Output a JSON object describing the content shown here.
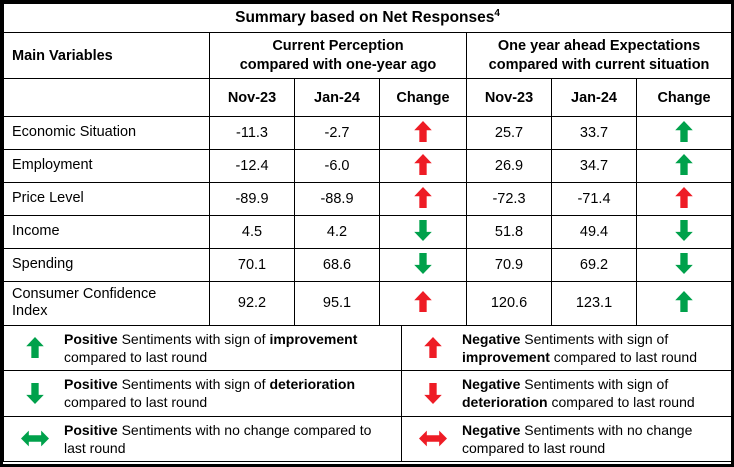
{
  "title": {
    "text": "Summary based on Net Responses",
    "superscript": "4"
  },
  "colors": {
    "positive_arrow": "#00a14b",
    "negative_arrow": "#ee1c25",
    "border": "#000000",
    "background": "#ffffff"
  },
  "chart_data": {
    "type": "table",
    "title": "Summary based on Net Responses",
    "title_note": "4",
    "header": {
      "variable_col": "Main Variables",
      "groups": [
        {
          "label": "Current Perception compared with one-year ago",
          "label_lines": [
            "Current Perception",
            "compared with one-year ago"
          ],
          "subcols": [
            "Nov-23",
            "Jan-24",
            "Change"
          ]
        },
        {
          "label": "One year ahead Expectations compared with current situation",
          "label_lines": [
            "One year ahead Expectations",
            "compared with current situation"
          ],
          "subcols": [
            "Nov-23",
            "Jan-24",
            "Change"
          ]
        }
      ]
    },
    "rows": [
      {
        "variable": "Economic Situation",
        "current_perception": {
          "nov23": "-11.3",
          "jan24": "-2.7",
          "change": {
            "direction": "up",
            "sentiment": "negative"
          }
        },
        "expectations": {
          "nov23": "25.7",
          "jan24": "33.7",
          "change": {
            "direction": "up",
            "sentiment": "positive"
          }
        }
      },
      {
        "variable": "Employment",
        "current_perception": {
          "nov23": "-12.4",
          "jan24": "-6.0",
          "change": {
            "direction": "up",
            "sentiment": "negative"
          }
        },
        "expectations": {
          "nov23": "26.9",
          "jan24": "34.7",
          "change": {
            "direction": "up",
            "sentiment": "positive"
          }
        }
      },
      {
        "variable": "Price Level",
        "current_perception": {
          "nov23": "-89.9",
          "jan24": "-88.9",
          "change": {
            "direction": "up",
            "sentiment": "negative"
          }
        },
        "expectations": {
          "nov23": "-72.3",
          "jan24": "-71.4",
          "change": {
            "direction": "up",
            "sentiment": "negative"
          }
        }
      },
      {
        "variable": "Income",
        "current_perception": {
          "nov23": "4.5",
          "jan24": "4.2",
          "change": {
            "direction": "down",
            "sentiment": "positive"
          }
        },
        "expectations": {
          "nov23": "51.8",
          "jan24": "49.4",
          "change": {
            "direction": "down",
            "sentiment": "positive"
          }
        }
      },
      {
        "variable": "Spending",
        "current_perception": {
          "nov23": "70.1",
          "jan24": "68.6",
          "change": {
            "direction": "down",
            "sentiment": "positive"
          }
        },
        "expectations": {
          "nov23": "70.9",
          "jan24": "69.2",
          "change": {
            "direction": "down",
            "sentiment": "positive"
          }
        }
      },
      {
        "variable": "Consumer Confidence Index",
        "current_perception": {
          "nov23": "92.2",
          "jan24": "95.1",
          "change": {
            "direction": "up",
            "sentiment": "negative"
          }
        },
        "expectations": {
          "nov23": "120.6",
          "jan24": "123.1",
          "change": {
            "direction": "up",
            "sentiment": "positive"
          }
        }
      }
    ]
  },
  "legend": {
    "items": [
      {
        "arrow": {
          "direction": "up",
          "sentiment": "positive"
        },
        "segments": [
          {
            "bold": true,
            "text": "Positive"
          },
          {
            "bold": false,
            "text": " Sentiments with sign of "
          },
          {
            "bold": true,
            "text": "improvement"
          },
          {
            "bold": false,
            "text": " compared to last round"
          }
        ]
      },
      {
        "arrow": {
          "direction": "up",
          "sentiment": "negative"
        },
        "segments": [
          {
            "bold": true,
            "text": "Negative"
          },
          {
            "bold": false,
            "text": " Sentiments with sign of "
          },
          {
            "bold": true,
            "text": "improvement"
          },
          {
            "bold": false,
            "text": " compared to last round"
          }
        ]
      },
      {
        "arrow": {
          "direction": "down",
          "sentiment": "positive"
        },
        "segments": [
          {
            "bold": true,
            "text": "Positive"
          },
          {
            "bold": false,
            "text": " Sentiments with sign of "
          },
          {
            "bold": true,
            "text": "deterioration"
          },
          {
            "bold": false,
            "text": " compared to last round"
          }
        ]
      },
      {
        "arrow": {
          "direction": "down",
          "sentiment": "negative"
        },
        "segments": [
          {
            "bold": true,
            "text": "Negative"
          },
          {
            "bold": false,
            "text": " Sentiments with sign of "
          },
          {
            "bold": true,
            "text": "deterioration"
          },
          {
            "bold": false,
            "text": " compared to last round"
          }
        ]
      },
      {
        "arrow": {
          "direction": "both",
          "sentiment": "positive"
        },
        "segments": [
          {
            "bold": true,
            "text": "Positive"
          },
          {
            "bold": false,
            "text": " Sentiments with no change compared to last round"
          }
        ]
      },
      {
        "arrow": {
          "direction": "both",
          "sentiment": "negative"
        },
        "segments": [
          {
            "bold": true,
            "text": "Negative"
          },
          {
            "bold": false,
            "text": " Sentiments with no change compared to last round"
          }
        ]
      }
    ]
  }
}
